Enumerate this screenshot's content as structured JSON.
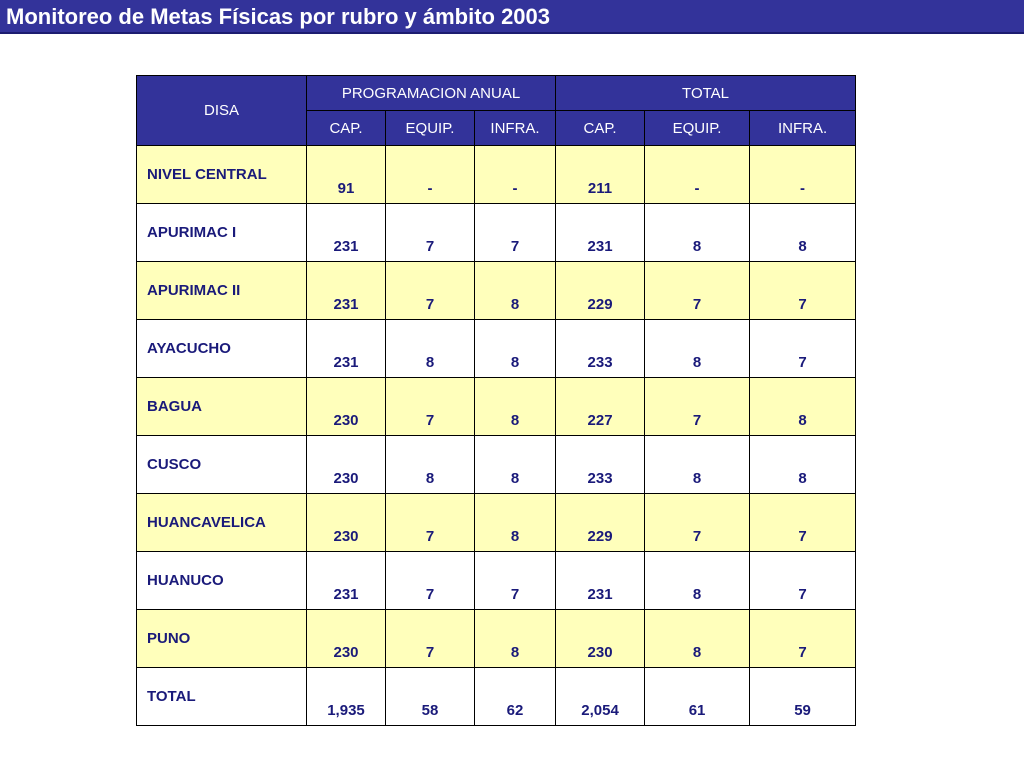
{
  "title": "Monitoreo de Metas Físicas por rubro y ámbito 2003",
  "colors": {
    "header_bg": "#33339a",
    "row_highlight": "#ffffbb",
    "text_dark_blue": "#1a1a7a"
  },
  "table": {
    "disa_header": "DISA",
    "group_headers": [
      "PROGRAMACION ANUAL",
      "TOTAL"
    ],
    "sub_headers": [
      "CAP.",
      "EQUIP.",
      "INFRA.",
      "CAP.",
      "EQUIP.",
      "INFRA."
    ],
    "rows": [
      {
        "name": "NIVEL CENTRAL",
        "values": [
          "91",
          "-",
          "-",
          "211",
          "-",
          "-"
        ]
      },
      {
        "name": "APURIMAC I",
        "values": [
          "231",
          "7",
          "7",
          "231",
          "8",
          "8"
        ]
      },
      {
        "name": "APURIMAC II",
        "values": [
          "231",
          "7",
          "8",
          "229",
          "7",
          "7"
        ]
      },
      {
        "name": "AYACUCHO",
        "values": [
          "231",
          "8",
          "8",
          "233",
          "8",
          "7"
        ]
      },
      {
        "name": "BAGUA",
        "values": [
          "230",
          "7",
          "8",
          "227",
          "7",
          "8"
        ]
      },
      {
        "name": "CUSCO",
        "values": [
          "230",
          "8",
          "8",
          "233",
          "8",
          "8"
        ]
      },
      {
        "name": "HUANCAVELICA",
        "values": [
          "230",
          "7",
          "8",
          "229",
          "7",
          "7"
        ]
      },
      {
        "name": "HUANUCO",
        "values": [
          "231",
          "7",
          "7",
          "231",
          "8",
          "7"
        ]
      },
      {
        "name": "PUNO",
        "values": [
          "230",
          "7",
          "8",
          "230",
          "8",
          "7"
        ]
      },
      {
        "name": "TOTAL",
        "values": [
          "1,935",
          "58",
          "62",
          "2,054",
          "61",
          "59"
        ]
      }
    ]
  }
}
